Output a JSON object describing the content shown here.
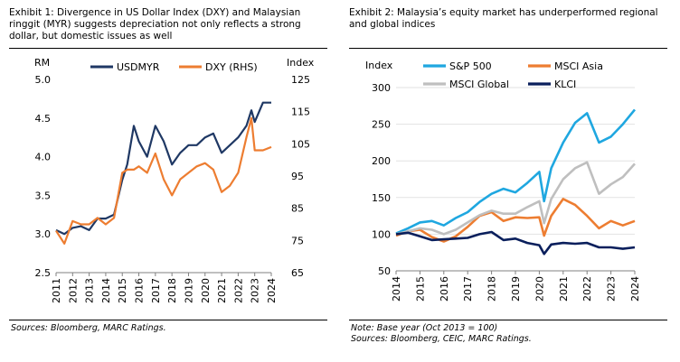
{
  "exhibit1": {
    "title": "Exhibit 1: Divergence in US Dollar Index (DXY) and Malaysian ringgit (MYR) suggests depreciation not only reflects a strong dollar, but domestic issues as well",
    "source": "Sources: Bloomberg, MARC Ratings."
  },
  "exhibit2": {
    "title": "Exhibit 2: Malaysia’s equity market has underperformed regional and global indices",
    "note": "Note: Base year (Oct 2013 = 100)",
    "source": "Sources: Bloomberg, CEIC, MARC Ratings."
  },
  "chart_data": [
    {
      "type": "line",
      "title": "",
      "xlabel": "",
      "ylabel": "RM",
      "y2label": "Index",
      "x": [
        2011,
        2011.5,
        2012,
        2012.5,
        2013,
        2013.5,
        2014,
        2014.5,
        2015,
        2015.3,
        2015.7,
        2016,
        2016.5,
        2017,
        2017.5,
        2018,
        2018.5,
        2019,
        2019.5,
        2020,
        2020.5,
        2021,
        2021.5,
        2022,
        2022.5,
        2022.8,
        2023,
        2023.5,
        2024
      ],
      "xticks": [
        "2011",
        "2012",
        "2013",
        "2014",
        "2015",
        "2016",
        "2017",
        "2018",
        "2019",
        "2020",
        "2021",
        "2022",
        "2023",
        "2024"
      ],
      "ylim": [
        2.5,
        5.0
      ],
      "yticks": [
        "2.5",
        "3.0",
        "3.5",
        "4.0",
        "4.5",
        "5.0"
      ],
      "y2lim": [
        65,
        125
      ],
      "y2ticks": [
        "65",
        "75",
        "85",
        "95",
        "105",
        "115",
        "125"
      ],
      "legend": "top",
      "series": [
        {
          "name": "USDMYR",
          "axis": "left",
          "color": "#1f3864",
          "values": [
            3.05,
            3.0,
            3.08,
            3.1,
            3.05,
            3.2,
            3.2,
            3.25,
            3.7,
            3.9,
            4.4,
            4.2,
            4.0,
            4.4,
            4.2,
            3.9,
            4.05,
            4.15,
            4.15,
            4.25,
            4.3,
            4.05,
            4.15,
            4.25,
            4.4,
            4.6,
            4.45,
            4.7,
            4.7
          ]
        },
        {
          "name": "DXY (RHS)",
          "axis": "right",
          "color": "#ed7d31",
          "values": [
            78,
            74,
            81,
            80,
            80,
            82,
            80,
            82,
            96,
            97,
            97,
            98,
            96,
            102,
            94,
            89,
            94,
            96,
            98,
            99,
            97,
            90,
            92,
            96,
            107,
            113,
            103,
            103,
            104
          ]
        }
      ]
    },
    {
      "type": "line",
      "title": "",
      "xlabel": "",
      "ylabel": "Index",
      "x": [
        2014,
        2014.5,
        2015,
        2015.5,
        2016,
        2016.5,
        2017,
        2017.5,
        2018,
        2018.5,
        2019,
        2019.5,
        2020,
        2020.2,
        2020.5,
        2021,
        2021.5,
        2022,
        2022.5,
        2023,
        2023.5,
        2024
      ],
      "xticks": [
        "2014",
        "2015",
        "2016",
        "2017",
        "2018",
        "2019",
        "2020",
        "2021",
        "2022",
        "2023",
        "2024"
      ],
      "ylim": [
        50,
        300
      ],
      "yticks": [
        "50",
        "100",
        "150",
        "200",
        "250",
        "300"
      ],
      "legend": "top",
      "series": [
        {
          "name": "S&P 500",
          "color": "#1fa7e0",
          "values": [
            101,
            108,
            116,
            118,
            112,
            122,
            130,
            144,
            155,
            162,
            157,
            170,
            185,
            145,
            190,
            225,
            252,
            265,
            225,
            233,
            250,
            270
          ]
        },
        {
          "name": "MSCI Asia",
          "color": "#ed7d31",
          "values": [
            98,
            104,
            106,
            96,
            90,
            97,
            110,
            125,
            130,
            118,
            123,
            122,
            123,
            98,
            125,
            148,
            140,
            125,
            108,
            118,
            112,
            118
          ]
        },
        {
          "name": "MSCI Global",
          "color": "#bfbfbf",
          "values": [
            100,
            104,
            108,
            106,
            100,
            106,
            116,
            126,
            132,
            128,
            128,
            137,
            145,
            115,
            148,
            175,
            190,
            198,
            155,
            168,
            178,
            196
          ]
        },
        {
          "name": "KLCI",
          "color": "#0a1f5c",
          "values": [
            100,
            102,
            97,
            92,
            93,
            94,
            95,
            100,
            103,
            92,
            94,
            88,
            85,
            73,
            86,
            88,
            87,
            88,
            82,
            82,
            80,
            82
          ]
        }
      ]
    }
  ]
}
